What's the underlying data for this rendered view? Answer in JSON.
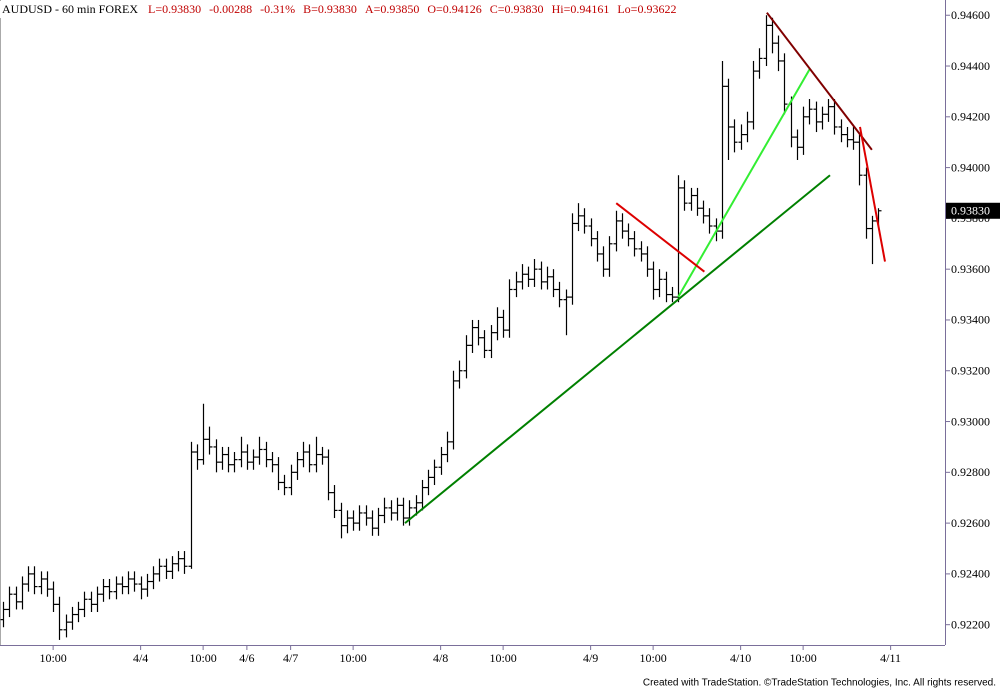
{
  "chart_data": {
    "type": "ohlc",
    "header": [
      "AUDUSD - 60 min FOREX",
      "L=0.93830",
      "-0.00288",
      "-0.31%",
      "B=0.93830",
      "A=0.93850",
      "O=0.94126",
      "C=0.93830",
      "Hi=0.94161",
      "Lo=0.93622"
    ],
    "footer": "Created with TradeStation. ©TradeStation Technologies, Inc. All rights reserved.",
    "color": "#000000",
    "xlim": [
      -0.5,
      150.7
    ],
    "xticks": [
      {
        "value": 8,
        "label": "10:00"
      },
      {
        "value": 22,
        "label": "4/4"
      },
      {
        "value": 32,
        "label": "10:00"
      },
      {
        "value": 39,
        "label": "4/6"
      },
      {
        "value": 46,
        "label": "4/7"
      },
      {
        "value": 56,
        "label": "10:00"
      },
      {
        "value": 70,
        "label": "4/8"
      },
      {
        "value": 80,
        "label": "10:00"
      },
      {
        "value": 94,
        "label": "4/9"
      },
      {
        "value": 104,
        "label": "10:00"
      },
      {
        "value": 118,
        "label": "4/10"
      },
      {
        "value": 128,
        "label": "10:00"
      },
      {
        "value": 142,
        "label": "4/11"
      }
    ],
    "ylim": [
      0.9212,
      0.9466
    ],
    "yticks": [
      {
        "value": 0.922,
        "label": "0.92200"
      },
      {
        "value": 0.924,
        "label": "0.92400"
      },
      {
        "value": 0.926,
        "label": "0.92600"
      },
      {
        "value": 0.928,
        "label": "0.92800"
      },
      {
        "value": 0.93,
        "label": "0.93000"
      },
      {
        "value": 0.932,
        "label": "0.93200"
      },
      {
        "value": 0.934,
        "label": "0.93400"
      },
      {
        "value": 0.936,
        "label": "0.93600"
      },
      {
        "value": 0.938,
        "label": "0.93800"
      },
      {
        "value": 0.94,
        "label": "0.94000"
      },
      {
        "value": 0.942,
        "label": "0.94200"
      },
      {
        "value": 0.944,
        "label": "0.94400"
      },
      {
        "value": 0.946,
        "label": "0.94600"
      }
    ],
    "last_price": {
      "value": 0.9383,
      "label": "0.93830"
    },
    "trendlines": [
      {
        "color": "#008000",
        "start": [
          64.3,
          0.926
        ],
        "end": [
          132.3,
          0.9397
        ]
      },
      {
        "color": "#33ee33",
        "start": [
          108,
          0.9349
        ],
        "end": [
          129.1,
          0.9439
        ]
      },
      {
        "color": "#dd0000",
        "start": [
          98.1,
          0.9386
        ],
        "end": [
          112.2,
          0.9359
        ]
      },
      {
        "color": "#800000",
        "start": [
          122.2,
          0.9461
        ],
        "end": [
          139,
          0.9407
        ]
      },
      {
        "color": "#dd0000",
        "start": [
          137.1,
          0.9416
        ],
        "end": [
          141.1,
          0.9363
        ]
      }
    ],
    "bars": [
      [
        0.9222,
        0.9229,
        0.9219,
        0.9226
      ],
      [
        0.9226,
        0.9235,
        0.9223,
        0.9232
      ],
      [
        0.9232,
        0.9235,
        0.9226,
        0.9229
      ],
      [
        0.9229,
        0.9239,
        0.9226,
        0.9236
      ],
      [
        0.9236,
        0.9243,
        0.9233,
        0.924
      ],
      [
        0.924,
        0.9243,
        0.9232,
        0.9235
      ],
      [
        0.9235,
        0.9241,
        0.9232,
        0.9238
      ],
      [
        0.9238,
        0.9241,
        0.9231,
        0.9234
      ],
      [
        0.9234,
        0.9237,
        0.9225,
        0.9228
      ],
      [
        0.9228,
        0.9231,
        0.9214,
        0.9218
      ],
      [
        0.9218,
        0.9224,
        0.9215,
        0.9221
      ],
      [
        0.9221,
        0.9227,
        0.9218,
        0.9224
      ],
      [
        0.9224,
        0.9229,
        0.9221,
        0.9226
      ],
      [
        0.9226,
        0.9233,
        0.9223,
        0.923
      ],
      [
        0.923,
        0.9233,
        0.9225,
        0.9228
      ],
      [
        0.9228,
        0.9235,
        0.9225,
        0.9232
      ],
      [
        0.9232,
        0.9238,
        0.9229,
        0.9235
      ],
      [
        0.9235,
        0.9238,
        0.923,
        0.9233
      ],
      [
        0.9233,
        0.9239,
        0.923,
        0.9236
      ],
      [
        0.9236,
        0.9239,
        0.9232,
        0.9235
      ],
      [
        0.9235,
        0.9241,
        0.9232,
        0.9238
      ],
      [
        0.9238,
        0.9241,
        0.9233,
        0.9236
      ],
      [
        0.9236,
        0.9239,
        0.923,
        0.9234
      ],
      [
        0.9234,
        0.924,
        0.9231,
        0.9237
      ],
      [
        0.9237,
        0.9243,
        0.9234,
        0.924
      ],
      [
        0.924,
        0.9246,
        0.9237,
        0.9243
      ],
      [
        0.9243,
        0.9246,
        0.9238,
        0.9241
      ],
      [
        0.9241,
        0.9247,
        0.9238,
        0.9244
      ],
      [
        0.9244,
        0.9249,
        0.9241,
        0.9246
      ],
      [
        0.9246,
        0.9249,
        0.924,
        0.9243
      ],
      [
        0.9243,
        0.9292,
        0.9242,
        0.9288
      ],
      [
        0.9288,
        0.9291,
        0.9281,
        0.9285
      ],
      [
        0.9285,
        0.9307,
        0.9283,
        0.9293
      ],
      [
        0.9293,
        0.9298,
        0.9287,
        0.929
      ],
      [
        0.929,
        0.9293,
        0.928,
        0.9284
      ],
      [
        0.9284,
        0.929,
        0.9281,
        0.9287
      ],
      [
        0.9287,
        0.929,
        0.928,
        0.9283
      ],
      [
        0.9283,
        0.9288,
        0.928,
        0.9285
      ],
      [
        0.9285,
        0.9294,
        0.9282,
        0.9288
      ],
      [
        0.9288,
        0.9291,
        0.9281,
        0.9284
      ],
      [
        0.9284,
        0.9289,
        0.9281,
        0.9286
      ],
      [
        0.9286,
        0.9294,
        0.9283,
        0.9289
      ],
      [
        0.9289,
        0.9292,
        0.9282,
        0.9285
      ],
      [
        0.9285,
        0.9288,
        0.928,
        0.9283
      ],
      [
        0.9283,
        0.9286,
        0.9273,
        0.9276
      ],
      [
        0.9276,
        0.9279,
        0.9271,
        0.9274
      ],
      [
        0.9274,
        0.9283,
        0.9271,
        0.928
      ],
      [
        0.928,
        0.9288,
        0.9277,
        0.9285
      ],
      [
        0.9285,
        0.9292,
        0.9282,
        0.9288
      ],
      [
        0.9288,
        0.9291,
        0.928,
        0.9283
      ],
      [
        0.9283,
        0.9294,
        0.928,
        0.9287
      ],
      [
        0.9287,
        0.929,
        0.9283,
        0.9286
      ],
      [
        0.9286,
        0.9289,
        0.9269,
        0.9272
      ],
      [
        0.9272,
        0.9275,
        0.9262,
        0.9265
      ],
      [
        0.9265,
        0.9268,
        0.9254,
        0.9259
      ],
      [
        0.9259,
        0.9265,
        0.9256,
        0.9262
      ],
      [
        0.9262,
        0.9265,
        0.9257,
        0.926
      ],
      [
        0.926,
        0.9267,
        0.9257,
        0.9264
      ],
      [
        0.9264,
        0.9267,
        0.9259,
        0.9262
      ],
      [
        0.9262,
        0.9265,
        0.9255,
        0.9258
      ],
      [
        0.9258,
        0.9266,
        0.9255,
        0.9263
      ],
      [
        0.9263,
        0.927,
        0.926,
        0.9266
      ],
      [
        0.9266,
        0.9269,
        0.9261,
        0.9264
      ],
      [
        0.9264,
        0.927,
        0.9261,
        0.9267
      ],
      [
        0.9267,
        0.927,
        0.9259,
        0.9262
      ],
      [
        0.9262,
        0.9269,
        0.9259,
        0.9266
      ],
      [
        0.9266,
        0.9271,
        0.9263,
        0.9268
      ],
      [
        0.9268,
        0.9277,
        0.9265,
        0.9274
      ],
      [
        0.9274,
        0.9281,
        0.9271,
        0.9278
      ],
      [
        0.9278,
        0.9285,
        0.9275,
        0.9282
      ],
      [
        0.9282,
        0.929,
        0.9279,
        0.9287
      ],
      [
        0.9287,
        0.9296,
        0.9284,
        0.9292
      ],
      [
        0.9292,
        0.932,
        0.9289,
        0.9316
      ],
      [
        0.9316,
        0.9324,
        0.9313,
        0.932
      ],
      [
        0.932,
        0.9334,
        0.9317,
        0.933
      ],
      [
        0.933,
        0.934,
        0.9327,
        0.9337
      ],
      [
        0.9337,
        0.934,
        0.933,
        0.9333
      ],
      [
        0.9333,
        0.9336,
        0.9325,
        0.9328
      ],
      [
        0.9328,
        0.9338,
        0.9325,
        0.9335
      ],
      [
        0.9335,
        0.9345,
        0.9332,
        0.9341
      ],
      [
        0.9341,
        0.9344,
        0.9333,
        0.9336
      ],
      [
        0.9336,
        0.9356,
        0.9333,
        0.9352
      ],
      [
        0.9352,
        0.9359,
        0.9349,
        0.9355
      ],
      [
        0.9355,
        0.9362,
        0.9352,
        0.9358
      ],
      [
        0.9358,
        0.9361,
        0.9353,
        0.9356
      ],
      [
        0.9356,
        0.9364,
        0.9353,
        0.936
      ],
      [
        0.936,
        0.9363,
        0.9352,
        0.9355
      ],
      [
        0.9355,
        0.9361,
        0.9352,
        0.9357
      ],
      [
        0.9357,
        0.936,
        0.9349,
        0.9352
      ],
      [
        0.9352,
        0.9355,
        0.9345,
        0.9348
      ],
      [
        0.9348,
        0.9352,
        0.9334,
        0.9349
      ],
      [
        0.9349,
        0.9382,
        0.9346,
        0.9378
      ],
      [
        0.9378,
        0.9386,
        0.9375,
        0.9381
      ],
      [
        0.9381,
        0.9384,
        0.9374,
        0.9377
      ],
      [
        0.9377,
        0.938,
        0.9369,
        0.9372
      ],
      [
        0.9372,
        0.9375,
        0.9363,
        0.9366
      ],
      [
        0.9366,
        0.9369,
        0.9357,
        0.936
      ],
      [
        0.936,
        0.9373,
        0.9357,
        0.937
      ],
      [
        0.937,
        0.9383,
        0.9367,
        0.9379
      ],
      [
        0.9379,
        0.9382,
        0.9372,
        0.9375
      ],
      [
        0.9375,
        0.9378,
        0.9369,
        0.9372
      ],
      [
        0.9372,
        0.9375,
        0.9365,
        0.9368
      ],
      [
        0.9368,
        0.9371,
        0.9363,
        0.9366
      ],
      [
        0.9366,
        0.9369,
        0.9357,
        0.936
      ],
      [
        0.936,
        0.9363,
        0.9348,
        0.9352
      ],
      [
        0.9352,
        0.936,
        0.9349,
        0.9356
      ],
      [
        0.9356,
        0.9359,
        0.9347,
        0.935
      ],
      [
        0.935,
        0.9353,
        0.9347,
        0.9349
      ],
      [
        0.9349,
        0.9397,
        0.9347,
        0.9392
      ],
      [
        0.9392,
        0.9395,
        0.9383,
        0.9386
      ],
      [
        0.9386,
        0.9392,
        0.9383,
        0.9389
      ],
      [
        0.9389,
        0.9392,
        0.9381,
        0.9384
      ],
      [
        0.9384,
        0.9387,
        0.9378,
        0.9381
      ],
      [
        0.9381,
        0.9384,
        0.9374,
        0.9377
      ],
      [
        0.9377,
        0.938,
        0.9371,
        0.9375
      ],
      [
        0.9375,
        0.9442,
        0.9372,
        0.9432
      ],
      [
        0.9432,
        0.9435,
        0.9403,
        0.9416
      ],
      [
        0.9416,
        0.9419,
        0.9406,
        0.941
      ],
      [
        0.941,
        0.9417,
        0.9407,
        0.9413
      ],
      [
        0.9413,
        0.9422,
        0.941,
        0.9418
      ],
      [
        0.9418,
        0.9442,
        0.9415,
        0.9438
      ],
      [
        0.9438,
        0.9447,
        0.9435,
        0.9443
      ],
      [
        0.9443,
        0.946,
        0.944,
        0.9456
      ],
      [
        0.9456,
        0.9459,
        0.9445,
        0.9449
      ],
      [
        0.9449,
        0.9452,
        0.9438,
        0.9442
      ],
      [
        0.9442,
        0.9445,
        0.9421,
        0.9425
      ],
      [
        0.9425,
        0.9428,
        0.9408,
        0.9412
      ],
      [
        0.9412,
        0.9415,
        0.9403,
        0.9408
      ],
      [
        0.9408,
        0.9424,
        0.9405,
        0.942
      ],
      [
        0.942,
        0.9427,
        0.9417,
        0.9423
      ],
      [
        0.9423,
        0.9426,
        0.9414,
        0.9418
      ],
      [
        0.9418,
        0.9424,
        0.9415,
        0.9421
      ],
      [
        0.9421,
        0.9427,
        0.9418,
        0.9424
      ],
      [
        0.9424,
        0.9427,
        0.9413,
        0.9416
      ],
      [
        0.9416,
        0.9419,
        0.941,
        0.9413
      ],
      [
        0.9413,
        0.9416,
        0.9408,
        0.9411
      ],
      [
        0.9411,
        0.9416,
        0.9407,
        0.941
      ],
      [
        0.941,
        0.9413,
        0.9393,
        0.9397
      ],
      [
        0.9397,
        0.94,
        0.9372,
        0.9376
      ],
      [
        0.9376,
        0.9381,
        0.9362,
        0.9379
      ],
      [
        0.9379,
        0.9384,
        0.9377,
        0.9383
      ]
    ]
  }
}
